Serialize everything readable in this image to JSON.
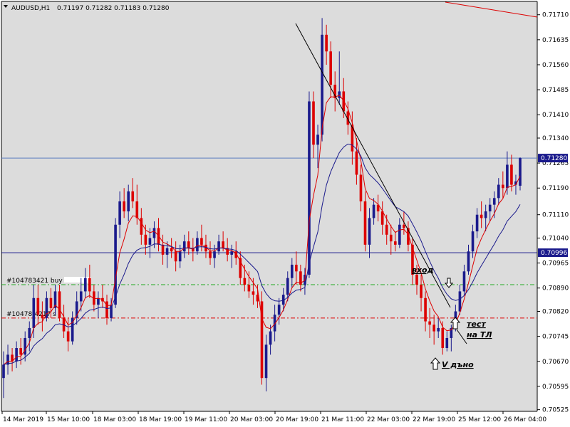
{
  "header": {
    "symbol": "AUDUSD,H1",
    "ohlc": "0.71197 0.71282 0.71183 0.71280"
  },
  "chart_data": {
    "type": "candlestick",
    "title": "AUDUSD,H1",
    "grid": false,
    "ylim": [
      0.7052,
      0.7175
    ],
    "y_ticks": [
      0.7171,
      0.71635,
      0.7156,
      0.71485,
      0.7141,
      0.7134,
      0.71265,
      0.7119,
      0.7111,
      0.7104,
      0.70965,
      0.7089,
      0.7082,
      0.70745,
      0.7067,
      0.70595,
      0.70525
    ],
    "x_tick_labels": [
      "14 Mar 2019",
      "15 Mar 10:00",
      "18 Mar 03:00",
      "18 Mar 19:00",
      "19 Mar 11:00",
      "20 Mar 03:00",
      "20 Mar 19:00",
      "21 Mar 11:00",
      "22 Mar 03:00",
      "22 Mar 19:00",
      "25 Mar 12:00",
      "26 Mar 04:00"
    ],
    "price_labels": {
      "current": "0.71280",
      "line": "0.70996"
    },
    "colors": {
      "up_candle": "#1a1a8c",
      "down_candle": "#dd0000",
      "ma_fast": "#dd0000",
      "ma_slow": "#1a1a8c",
      "trendline": "#000000",
      "horizontal_line": "#1a1a8c",
      "buy_order_line": "#22aa22",
      "stop_line": "#dd0000"
    },
    "horizontal_levels": {
      "current_price": 0.7128,
      "blue_line": 0.70996,
      "buy_order": 0.709,
      "stop": 0.708
    },
    "order_labels": {
      "buy": "#104783421 buy",
      "stop": "#10478-4217 s"
    },
    "annotations": [
      {
        "text": "вход"
      },
      {
        "text": "тест"
      },
      {
        "text": "на ТЛ"
      },
      {
        "text": "V дъно"
      }
    ],
    "ohlc": [
      [
        0.7062,
        0.707,
        0.7056,
        0.7066
      ],
      [
        0.7066,
        0.7072,
        0.7063,
        0.7069
      ],
      [
        0.7069,
        0.7071,
        0.7064,
        0.7067
      ],
      [
        0.7067,
        0.7073,
        0.7065,
        0.7071
      ],
      [
        0.7071,
        0.7074,
        0.7066,
        0.7069
      ],
      [
        0.7069,
        0.7076,
        0.7067,
        0.7074
      ],
      [
        0.7074,
        0.7079,
        0.707,
        0.7077
      ],
      [
        0.7077,
        0.709,
        0.7074,
        0.7086
      ],
      [
        0.7086,
        0.709,
        0.7078,
        0.7081
      ],
      [
        0.7081,
        0.7085,
        0.7076,
        0.708
      ],
      [
        0.708,
        0.7088,
        0.7079,
        0.7086
      ],
      [
        0.7086,
        0.7089,
        0.708,
        0.7083
      ],
      [
        0.7083,
        0.709,
        0.7081,
        0.7088
      ],
      [
        0.7088,
        0.709,
        0.7079,
        0.708
      ],
      [
        0.708,
        0.7084,
        0.7074,
        0.7076
      ],
      [
        0.7076,
        0.708,
        0.707,
        0.7073
      ],
      [
        0.7073,
        0.7082,
        0.7072,
        0.708
      ],
      [
        0.708,
        0.7088,
        0.7078,
        0.7085
      ],
      [
        0.7085,
        0.7092,
        0.7082,
        0.7088
      ],
      [
        0.7088,
        0.7095,
        0.7086,
        0.7092
      ],
      [
        0.7092,
        0.7096,
        0.7086,
        0.7088
      ],
      [
        0.7088,
        0.709,
        0.7082,
        0.7084
      ],
      [
        0.7084,
        0.7088,
        0.708,
        0.7086
      ],
      [
        0.7086,
        0.709,
        0.7083,
        0.7085
      ],
      [
        0.7085,
        0.7087,
        0.7078,
        0.708
      ],
      [
        0.708,
        0.7086,
        0.7079,
        0.7084
      ],
      [
        0.7084,
        0.711,
        0.7083,
        0.7108
      ],
      [
        0.7108,
        0.7118,
        0.7104,
        0.7115
      ],
      [
        0.7115,
        0.7119,
        0.711,
        0.7112
      ],
      [
        0.7112,
        0.712,
        0.7109,
        0.7118
      ],
      [
        0.7118,
        0.7122,
        0.7113,
        0.7115
      ],
      [
        0.7115,
        0.712,
        0.7108,
        0.711
      ],
      [
        0.711,
        0.7113,
        0.7102,
        0.7105
      ],
      [
        0.7105,
        0.7108,
        0.7099,
        0.7102
      ],
      [
        0.7102,
        0.7107,
        0.7098,
        0.7104
      ],
      [
        0.7104,
        0.7109,
        0.7101,
        0.7107
      ],
      [
        0.7107,
        0.711,
        0.71,
        0.7102
      ],
      [
        0.7102,
        0.7105,
        0.7096,
        0.7099
      ],
      [
        0.7099,
        0.7103,
        0.7095,
        0.7101
      ],
      [
        0.7101,
        0.7104,
        0.7098,
        0.71
      ],
      [
        0.71,
        0.7103,
        0.7094,
        0.7097
      ],
      [
        0.7097,
        0.7102,
        0.7095,
        0.71
      ],
      [
        0.71,
        0.7105,
        0.7098,
        0.7103
      ],
      [
        0.7103,
        0.7106,
        0.7099,
        0.7101
      ],
      [
        0.7101,
        0.7104,
        0.7097,
        0.71
      ],
      [
        0.71,
        0.7106,
        0.7099,
        0.7104
      ],
      [
        0.7104,
        0.7108,
        0.71,
        0.7102
      ],
      [
        0.7102,
        0.7105,
        0.7098,
        0.71
      ],
      [
        0.71,
        0.7103,
        0.7096,
        0.7098
      ],
      [
        0.7098,
        0.7102,
        0.7095,
        0.71
      ],
      [
        0.71,
        0.7105,
        0.7099,
        0.7103
      ],
      [
        0.7103,
        0.7106,
        0.71,
        0.7101
      ],
      [
        0.7101,
        0.7104,
        0.7097,
        0.7099
      ],
      [
        0.7099,
        0.7102,
        0.7095,
        0.71
      ],
      [
        0.71,
        0.7103,
        0.7096,
        0.7098
      ],
      [
        0.7098,
        0.71,
        0.709,
        0.7092
      ],
      [
        0.7092,
        0.7096,
        0.7088,
        0.709
      ],
      [
        0.709,
        0.7094,
        0.7086,
        0.7088
      ],
      [
        0.7088,
        0.7092,
        0.7084,
        0.7087
      ],
      [
        0.7087,
        0.709,
        0.7083,
        0.7085
      ],
      [
        0.7085,
        0.7088,
        0.706,
        0.7062
      ],
      [
        0.7062,
        0.7075,
        0.7058,
        0.7072
      ],
      [
        0.7072,
        0.7078,
        0.7069,
        0.7076
      ],
      [
        0.7076,
        0.7084,
        0.7073,
        0.7081
      ],
      [
        0.7081,
        0.7086,
        0.7078,
        0.7084
      ],
      [
        0.7084,
        0.7089,
        0.7082,
        0.7087
      ],
      [
        0.7087,
        0.7094,
        0.7085,
        0.7092
      ],
      [
        0.7092,
        0.7098,
        0.7089,
        0.7096
      ],
      [
        0.7096,
        0.71,
        0.709,
        0.7094
      ],
      [
        0.7094,
        0.7096,
        0.7088,
        0.709
      ],
      [
        0.709,
        0.7095,
        0.7087,
        0.7093
      ],
      [
        0.7093,
        0.7148,
        0.7092,
        0.7145
      ],
      [
        0.7145,
        0.7148,
        0.7128,
        0.7132
      ],
      [
        0.7132,
        0.7138,
        0.7125,
        0.7135
      ],
      [
        0.7135,
        0.717,
        0.7133,
        0.7165
      ],
      [
        0.7165,
        0.7168,
        0.7156,
        0.716
      ],
      [
        0.716,
        0.7163,
        0.7146,
        0.715
      ],
      [
        0.715,
        0.7154,
        0.7142,
        0.7146
      ],
      [
        0.7146,
        0.716,
        0.7144,
        0.7148
      ],
      [
        0.7148,
        0.7152,
        0.714,
        0.7142
      ],
      [
        0.7142,
        0.7145,
        0.7135,
        0.7138
      ],
      [
        0.7138,
        0.7142,
        0.7126,
        0.713
      ],
      [
        0.713,
        0.7134,
        0.712,
        0.7123
      ],
      [
        0.7123,
        0.7126,
        0.7112,
        0.7115
      ],
      [
        0.7115,
        0.7118,
        0.71,
        0.7102
      ],
      [
        0.7102,
        0.7113,
        0.7098,
        0.711
      ],
      [
        0.711,
        0.7116,
        0.7108,
        0.7114
      ],
      [
        0.7114,
        0.7117,
        0.7109,
        0.7112
      ],
      [
        0.7112,
        0.7115,
        0.7105,
        0.7108
      ],
      [
        0.7108,
        0.7111,
        0.7102,
        0.7105
      ],
      [
        0.7105,
        0.7108,
        0.7099,
        0.7103
      ],
      [
        0.7103,
        0.7106,
        0.71,
        0.7102
      ],
      [
        0.7102,
        0.711,
        0.7101,
        0.7108
      ],
      [
        0.7108,
        0.7112,
        0.7105,
        0.7107
      ],
      [
        0.7107,
        0.7109,
        0.71,
        0.7102
      ],
      [
        0.7102,
        0.7104,
        0.709,
        0.7093
      ],
      [
        0.7093,
        0.7096,
        0.7087,
        0.709
      ],
      [
        0.709,
        0.7093,
        0.7082,
        0.7086
      ],
      [
        0.7086,
        0.7088,
        0.7076,
        0.7079
      ],
      [
        0.7079,
        0.7083,
        0.7074,
        0.7078
      ],
      [
        0.7078,
        0.7081,
        0.7072,
        0.7076
      ],
      [
        0.7076,
        0.708,
        0.7074,
        0.7077
      ],
      [
        0.7077,
        0.7079,
        0.7069,
        0.7071
      ],
      [
        0.7071,
        0.7076,
        0.707,
        0.7074
      ],
      [
        0.7074,
        0.7078,
        0.707,
        0.7077
      ],
      [
        0.7077,
        0.7084,
        0.7076,
        0.7082
      ],
      [
        0.7082,
        0.709,
        0.7081,
        0.7088
      ],
      [
        0.7088,
        0.7096,
        0.7087,
        0.7094
      ],
      [
        0.7094,
        0.7102,
        0.7093,
        0.71
      ],
      [
        0.71,
        0.7108,
        0.7098,
        0.7106
      ],
      [
        0.7106,
        0.7113,
        0.7104,
        0.7111
      ],
      [
        0.7111,
        0.7115,
        0.7107,
        0.711
      ],
      [
        0.711,
        0.7114,
        0.7106,
        0.7112
      ],
      [
        0.7112,
        0.7116,
        0.7109,
        0.7114
      ],
      [
        0.7114,
        0.7118,
        0.711,
        0.7116
      ],
      [
        0.7116,
        0.7122,
        0.7114,
        0.712
      ],
      [
        0.712,
        0.7124,
        0.7116,
        0.7119
      ],
      [
        0.7119,
        0.713,
        0.7117,
        0.7126
      ],
      [
        0.7126,
        0.7129,
        0.7118,
        0.712
      ],
      [
        0.712,
        0.7123,
        0.7117,
        0.7121
      ],
      [
        0.71197,
        0.71282,
        0.71183,
        0.7128
      ]
    ]
  }
}
